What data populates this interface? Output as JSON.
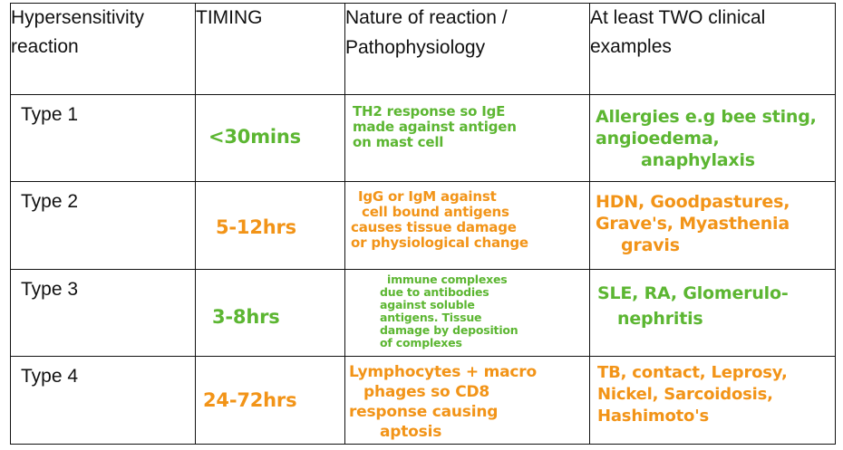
{
  "table": {
    "headers": {
      "reaction": [
        "Hypersensitivity",
        "reaction"
      ],
      "timing": "TIMING",
      "nature": [
        "Nature of reaction /",
        "Pathophysiology"
      ],
      "examples": [
        "At least TWO clinical",
        "examples"
      ]
    },
    "rows": [
      {
        "type": "Type 1",
        "timing": "<30mins",
        "nature": [
          "TH2 response so IgE",
          "made against antigen",
          "on mast cell"
        ],
        "examples": [
          "Allergies e.g bee sting,",
          "angioedema,",
          "anaphylaxis"
        ]
      },
      {
        "type": "Type 2",
        "timing": "5-12hrs",
        "nature": [
          "IgG or IgM against",
          "cell bound antigens",
          "causes tissue damage",
          "or physiological change"
        ],
        "examples": [
          "HDN, Goodpastures,",
          "Grave's, Myasthenia",
          "gravis"
        ]
      },
      {
        "type": "Type 3",
        "timing": "3-8hrs",
        "nature": [
          "immune complexes",
          "due to antibodies",
          "against soluble",
          "antigens. Tissue",
          "damage by deposition",
          "of complexes"
        ],
        "examples": [
          "SLE, RA, Glomerulo-",
          "nephritis"
        ]
      },
      {
        "type": "Type 4",
        "timing": "24-72hrs",
        "nature": [
          "Lymphocytes + macro",
          "phages so CD8",
          "response causing",
          "aptosis"
        ],
        "examples": [
          "TB, contact, Leprosy,",
          "Nickel, Sarcoidosis,",
          "Hashimoto's"
        ]
      }
    ]
  },
  "colors": {
    "green_ink": "#5cb632",
    "orange_ink": "#f29418",
    "text": "#111111"
  }
}
